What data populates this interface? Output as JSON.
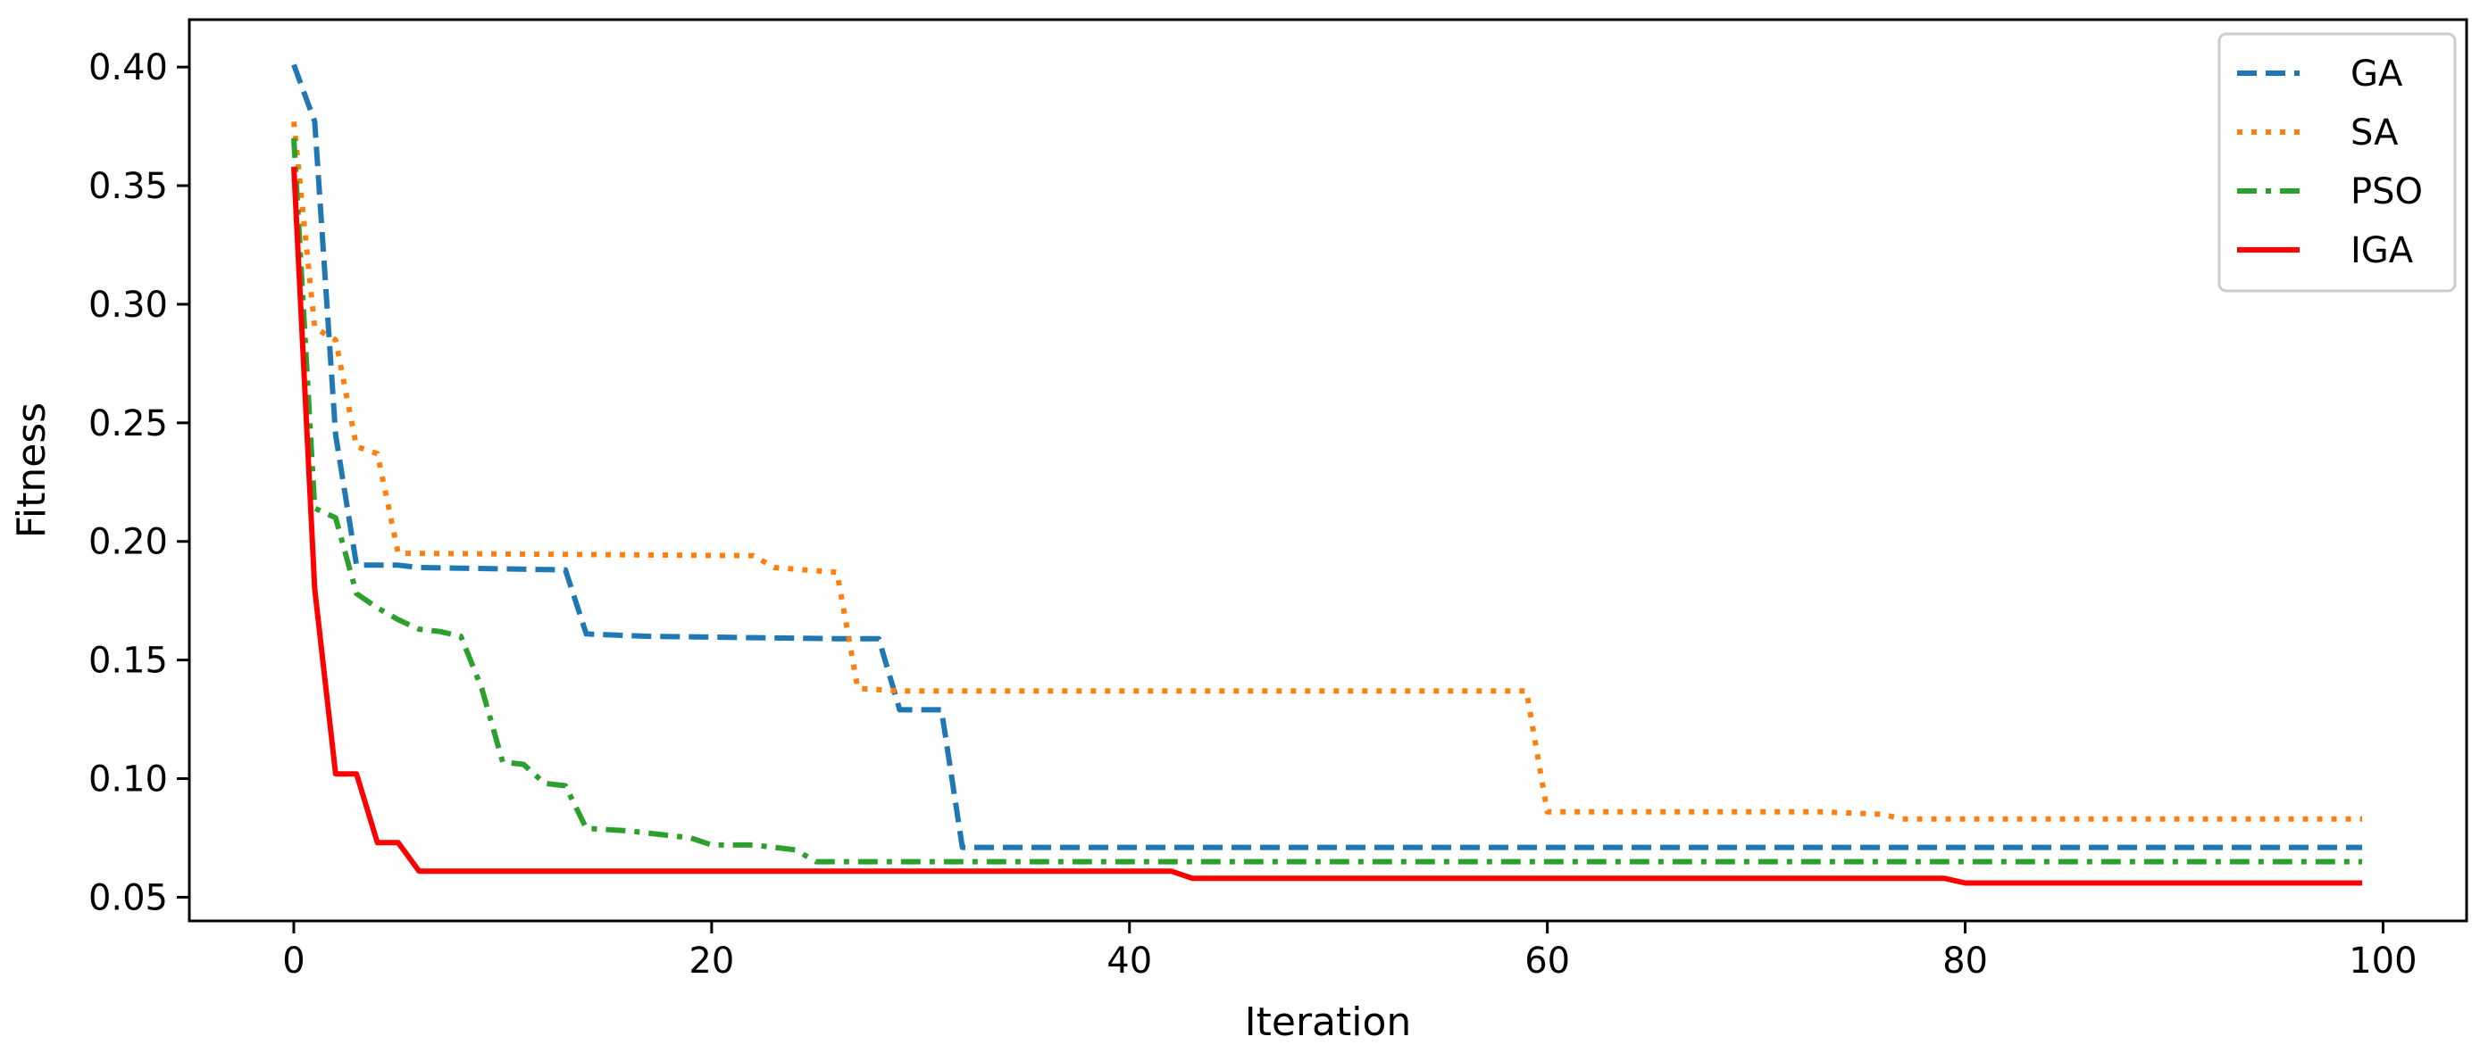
{
  "chart_data": {
    "type": "line",
    "title": "",
    "xlabel": "Iteration",
    "ylabel": "Fitness",
    "xlim": [
      -5,
      104
    ],
    "ylim": [
      0.04,
      0.42
    ],
    "xticks": [
      0,
      20,
      40,
      60,
      80,
      100
    ],
    "yticks": [
      0.05,
      0.1,
      0.15,
      0.2,
      0.25,
      0.3,
      0.35,
      0.4
    ],
    "xtick_labels": [
      "0",
      "20",
      "40",
      "60",
      "80",
      "100"
    ],
    "ytick_labels": [
      "0.05",
      "0.10",
      "0.15",
      "0.20",
      "0.25",
      "0.30",
      "0.35",
      "0.40"
    ],
    "grid": false,
    "legend_position": "top-right",
    "series": [
      {
        "name": "GA",
        "color": "#1f77b4",
        "dash": "dashed",
        "points": [
          [
            0,
            0.401
          ],
          [
            1,
            0.377
          ],
          [
            2,
            0.245
          ],
          [
            3,
            0.19
          ],
          [
            5,
            0.19
          ],
          [
            6,
            0.189
          ],
          [
            13,
            0.188
          ],
          [
            14,
            0.161
          ],
          [
            17,
            0.16
          ],
          [
            26,
            0.159
          ],
          [
            28,
            0.159
          ],
          [
            29,
            0.129
          ],
          [
            31,
            0.129
          ],
          [
            32,
            0.071
          ],
          [
            99,
            0.071
          ]
        ]
      },
      {
        "name": "SA",
        "color": "#ff7f0e",
        "dash": "dotted",
        "points": [
          [
            0,
            0.377
          ],
          [
            1,
            0.29
          ],
          [
            2,
            0.285
          ],
          [
            3,
            0.24
          ],
          [
            4,
            0.237
          ],
          [
            5,
            0.195
          ],
          [
            22,
            0.194
          ],
          [
            23,
            0.189
          ],
          [
            26,
            0.187
          ],
          [
            27,
            0.138
          ],
          [
            29,
            0.137
          ],
          [
            59,
            0.137
          ],
          [
            60,
            0.086
          ],
          [
            73,
            0.086
          ],
          [
            76,
            0.085
          ],
          [
            77,
            0.083
          ],
          [
            99,
            0.083
          ]
        ]
      },
      {
        "name": "PSO",
        "color": "#2ca02c",
        "dash": "dashdot",
        "points": [
          [
            0,
            0.37
          ],
          [
            1,
            0.214
          ],
          [
            2,
            0.21
          ],
          [
            3,
            0.178
          ],
          [
            4,
            0.172
          ],
          [
            5,
            0.167
          ],
          [
            6,
            0.163
          ],
          [
            7,
            0.162
          ],
          [
            8,
            0.16
          ],
          [
            9,
            0.138
          ],
          [
            10,
            0.107
          ],
          [
            11,
            0.106
          ],
          [
            12,
            0.098
          ],
          [
            13,
            0.097
          ],
          [
            14,
            0.079
          ],
          [
            16,
            0.078
          ],
          [
            19,
            0.075
          ],
          [
            20,
            0.072
          ],
          [
            22,
            0.072
          ],
          [
            24,
            0.07
          ],
          [
            25,
            0.065
          ],
          [
            99,
            0.065
          ]
        ]
      },
      {
        "name": "IGA",
        "color": "#ff0000",
        "dash": "solid",
        "points": [
          [
            0,
            0.358
          ],
          [
            1,
            0.18
          ],
          [
            2,
            0.102
          ],
          [
            3,
            0.102
          ],
          [
            4,
            0.073
          ],
          [
            5,
            0.073
          ],
          [
            6,
            0.061
          ],
          [
            42,
            0.061
          ],
          [
            43,
            0.058
          ],
          [
            79,
            0.058
          ],
          [
            80,
            0.056
          ],
          [
            99,
            0.056
          ]
        ]
      }
    ]
  }
}
